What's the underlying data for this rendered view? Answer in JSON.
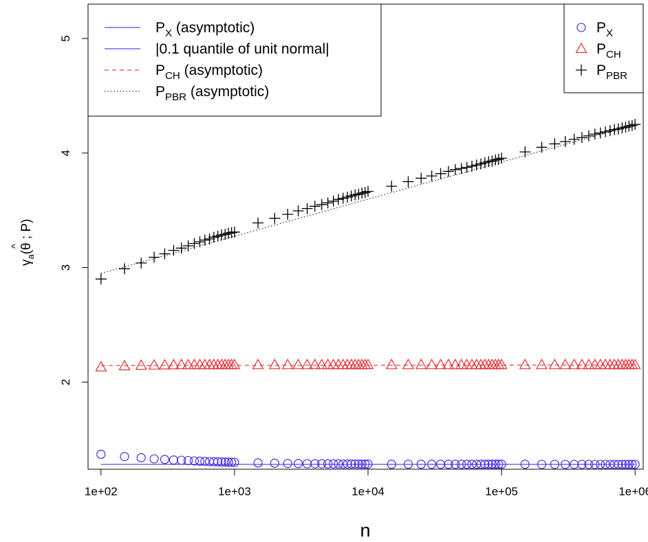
{
  "chart_data": {
    "type": "scatter",
    "x_scale": "log10",
    "xlabel": "n",
    "ylabel_parts": {
      "gamma": "γ",
      "sub": "a",
      "theta": "θ",
      "hat": "^",
      "rest": "; P)"
    },
    "xlim": [
      80,
      1150000
    ],
    "ylim": [
      1.24,
      5.3
    ],
    "x_ticks": [
      100,
      1000,
      10000,
      100000,
      1000000
    ],
    "x_tick_labels": [
      "1e+02",
      "1e+03",
      "1e+04",
      "1e+05",
      "1e+06"
    ],
    "y_ticks": [
      2,
      3,
      4,
      5
    ],
    "y_tick_labels": [
      "2",
      "3",
      "4",
      "5"
    ],
    "x": [
      100,
      150,
      200,
      250,
      300,
      350,
      400,
      450,
      500,
      550,
      600,
      650,
      700,
      750,
      800,
      850,
      900,
      950,
      1000,
      1500,
      2000,
      2500,
      3000,
      3500,
      4000,
      4500,
      5000,
      5500,
      6000,
      6500,
      7000,
      7500,
      8000,
      8500,
      9000,
      9500,
      10000,
      15000,
      20000,
      25000,
      30000,
      35000,
      40000,
      45000,
      50000,
      55000,
      60000,
      65000,
      70000,
      75000,
      80000,
      85000,
      90000,
      95000,
      100000,
      150000,
      200000,
      250000,
      300000,
      350000,
      400000,
      450000,
      500000,
      550000,
      600000,
      650000,
      700000,
      750000,
      800000,
      850000,
      900000,
      950000,
      1000000
    ],
    "series": [
      {
        "key": "px",
        "marker": "circle",
        "color": "#3b16e6",
        "values": [
          1.37,
          1.35,
          1.34,
          1.33,
          1.325,
          1.32,
          1.318,
          1.315,
          1.312,
          1.31,
          1.308,
          1.306,
          1.305,
          1.304,
          1.303,
          1.302,
          1.301,
          1.3,
          1.3,
          1.295,
          1.292,
          1.29,
          1.289,
          1.288,
          1.287,
          1.287,
          1.286,
          1.286,
          1.286,
          1.285,
          1.285,
          1.285,
          1.285,
          1.285,
          1.284,
          1.284,
          1.284,
          1.283,
          1.283,
          1.283,
          1.283,
          1.283,
          1.283,
          1.283,
          1.283,
          1.283,
          1.283,
          1.283,
          1.283,
          1.283,
          1.283,
          1.283,
          1.283,
          1.283,
          1.283,
          1.283,
          1.282,
          1.282,
          1.282,
          1.282,
          1.282,
          1.282,
          1.282,
          1.282,
          1.282,
          1.282,
          1.282,
          1.282,
          1.282,
          1.282,
          1.282,
          1.282,
          1.282
        ]
      },
      {
        "key": "pch",
        "marker": "triangle",
        "color": "#e31a1c",
        "values": [
          2.13,
          2.14,
          2.145,
          2.147,
          2.148,
          2.149,
          2.15,
          2.15,
          2.15,
          2.15,
          2.15,
          2.15,
          2.15,
          2.15,
          2.15,
          2.15,
          2.15,
          2.15,
          2.15,
          2.15,
          2.15,
          2.15,
          2.15,
          2.15,
          2.15,
          2.15,
          2.15,
          2.15,
          2.15,
          2.15,
          2.15,
          2.15,
          2.15,
          2.15,
          2.15,
          2.15,
          2.15,
          2.15,
          2.15,
          2.15,
          2.15,
          2.15,
          2.15,
          2.15,
          2.15,
          2.15,
          2.15,
          2.15,
          2.15,
          2.15,
          2.15,
          2.15,
          2.15,
          2.15,
          2.15,
          2.15,
          2.15,
          2.15,
          2.15,
          2.15,
          2.15,
          2.15,
          2.15,
          2.15,
          2.15,
          2.15,
          2.15,
          2.15,
          2.15,
          2.15,
          2.15,
          2.15,
          2.15
        ]
      },
      {
        "key": "ppbr",
        "marker": "plus",
        "color": "#000000",
        "values": [
          2.9,
          2.99,
          3.04,
          3.09,
          3.12,
          3.15,
          3.17,
          3.19,
          3.21,
          3.225,
          3.24,
          3.25,
          3.265,
          3.275,
          3.285,
          3.29,
          3.3,
          3.305,
          3.31,
          3.39,
          3.43,
          3.465,
          3.495,
          3.515,
          3.535,
          3.55,
          3.565,
          3.58,
          3.595,
          3.605,
          3.615,
          3.625,
          3.635,
          3.64,
          3.65,
          3.655,
          3.665,
          3.71,
          3.75,
          3.78,
          3.8,
          3.82,
          3.84,
          3.855,
          3.865,
          3.875,
          3.885,
          3.895,
          3.905,
          3.915,
          3.925,
          3.93,
          3.94,
          3.945,
          3.955,
          4.01,
          4.05,
          4.08,
          4.1,
          4.12,
          4.135,
          4.15,
          4.165,
          4.175,
          4.185,
          4.195,
          4.205,
          4.21,
          4.22,
          4.225,
          4.235,
          4.24,
          4.25
        ]
      }
    ],
    "lines": [
      {
        "key": "px_asym",
        "style": "solid",
        "color": "#3b16e6",
        "y_start": 1.282,
        "y_end": 1.282
      },
      {
        "key": "quantile",
        "style": "solid",
        "color": "#3b16e6",
        "y_start": 1.2816,
        "y_end": 1.2816
      },
      {
        "key": "pch_asym",
        "style": "dashed",
        "color": "#e31a1c",
        "y_start": 2.145,
        "y_end": 2.15
      },
      {
        "key": "ppbr_asym",
        "style": "dotted",
        "color": "#000000",
        "y_start": 2.95,
        "y_end": 4.245
      }
    ],
    "legend_lines": {
      "placement": "top-left",
      "entries": [
        {
          "main": "P",
          "sub": "X",
          "suffix": " (asymptotic)",
          "style": "solid",
          "color": "#3b16e6"
        },
        {
          "main": "|0.1 quantile of unit normal|",
          "sub": "",
          "suffix": "",
          "style": "solid",
          "color": "#3b16e6"
        },
        {
          "main": "P",
          "sub": "CH",
          "suffix": " (asymptotic)",
          "style": "dashed",
          "color": "#e31a1c"
        },
        {
          "main": "P",
          "sub": "PBR",
          "suffix": " (asymptotic)",
          "style": "dotted",
          "color": "#000000"
        }
      ]
    },
    "legend_points": {
      "placement": "top-right",
      "entries": [
        {
          "main": "P",
          "sub": "X",
          "marker": "circle",
          "color": "#3b16e6"
        },
        {
          "main": "P",
          "sub": "CH",
          "marker": "triangle",
          "color": "#e31a1c"
        },
        {
          "main": "P",
          "sub": "PBR",
          "marker": "plus",
          "color": "#000000"
        }
      ]
    }
  }
}
